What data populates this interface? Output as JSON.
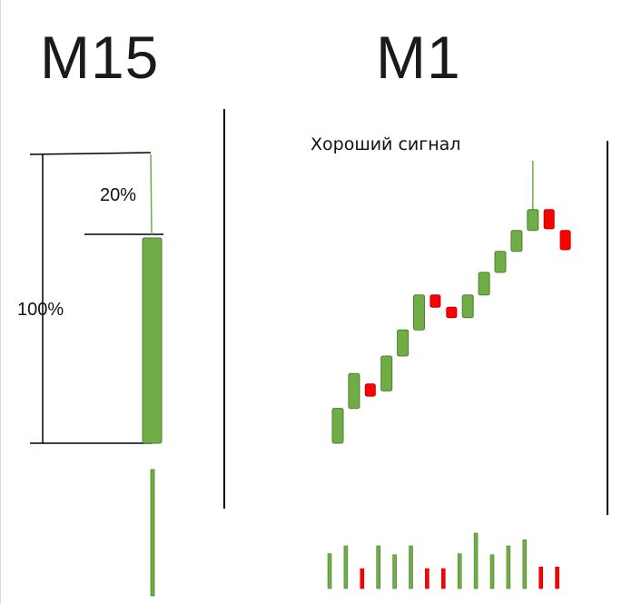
{
  "left_panel": {
    "title": "M15",
    "label_total": "100%",
    "label_wick": "20%"
  },
  "right_panel": {
    "title": "M1",
    "signal_label": "Хороший сигнал"
  },
  "colors": {
    "bull": "#70ad47",
    "bull_border": "#507e32",
    "bear": "#ff0000",
    "bear_border": "#c00000",
    "line": "#000000"
  },
  "m1_candles": [
    {
      "dir": "up",
      "open": 0,
      "close": 2
    },
    {
      "dir": "up",
      "open": 2,
      "close": 4
    },
    {
      "dir": "down",
      "open": 3.4,
      "close": 2.7
    },
    {
      "dir": "up",
      "open": 3.0,
      "close": 5.0
    },
    {
      "dir": "up",
      "open": 5.0,
      "close": 6.5
    },
    {
      "dir": "up",
      "open": 6.5,
      "close": 8.5
    },
    {
      "dir": "down",
      "open": 8.5,
      "close": 7.8
    },
    {
      "dir": "down",
      "open": 7.8,
      "close": 7.2
    },
    {
      "dir": "up",
      "open": 7.2,
      "close": 8.5
    },
    {
      "dir": "up",
      "open": 8.5,
      "close": 9.8
    },
    {
      "dir": "up",
      "open": 9.8,
      "close": 11.0
    },
    {
      "dir": "up",
      "open": 11.0,
      "close": 12.2
    },
    {
      "dir": "up",
      "open": 12.2,
      "close": 13.4,
      "wick_high": 16.2
    },
    {
      "dir": "down",
      "open": 13.4,
      "close": 12.3
    },
    {
      "dir": "down",
      "open": 12.2,
      "close": 11.1
    }
  ],
  "m1_volumes": [
    {
      "dir": "up",
      "v": 0.63
    },
    {
      "dir": "up",
      "v": 0.77
    },
    {
      "dir": "down",
      "v": 0.36
    },
    {
      "dir": "up",
      "v": 0.77
    },
    {
      "dir": "up",
      "v": 0.61
    },
    {
      "dir": "up",
      "v": 0.77
    },
    {
      "dir": "down",
      "v": 0.36
    },
    {
      "dir": "down",
      "v": 0.36
    },
    {
      "dir": "up",
      "v": 0.63
    },
    {
      "dir": "up",
      "v": 1.0
    },
    {
      "dir": "up",
      "v": 0.61
    },
    {
      "dir": "up",
      "v": 0.77
    },
    {
      "dir": "up",
      "v": 0.88
    },
    {
      "dir": "down",
      "v": 0.39
    },
    {
      "dir": "down",
      "v": 0.39
    }
  ]
}
